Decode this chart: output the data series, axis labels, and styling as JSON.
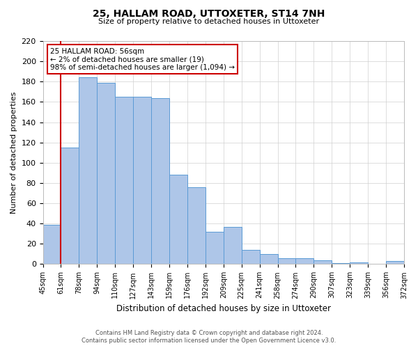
{
  "title": "25, HALLAM ROAD, UTTOXETER, ST14 7NH",
  "subtitle": "Size of property relative to detached houses in Uttoxeter",
  "xlabel": "Distribution of detached houses by size in Uttoxeter",
  "ylabel": "Number of detached properties",
  "bar_labels": [
    "45sqm",
    "61sqm",
    "78sqm",
    "94sqm",
    "110sqm",
    "127sqm",
    "143sqm",
    "159sqm",
    "176sqm",
    "192sqm",
    "209sqm",
    "225sqm",
    "241sqm",
    "258sqm",
    "274sqm",
    "290sqm",
    "307sqm",
    "323sqm",
    "339sqm",
    "356sqm",
    "372sqm"
  ],
  "bar_values": [
    39,
    115,
    184,
    179,
    165,
    165,
    164,
    88,
    76,
    32,
    37,
    14,
    10,
    6,
    6,
    4,
    1,
    2,
    0,
    3
  ],
  "bar_color": "#aec6e8",
  "bar_edge_color": "#5b9bd5",
  "background_color": "#ffffff",
  "grid_color": "#d0d0d0",
  "ylim": [
    0,
    220
  ],
  "yticks": [
    0,
    20,
    40,
    60,
    80,
    100,
    120,
    140,
    160,
    180,
    200,
    220
  ],
  "marker_color": "#cc0000",
  "annotation_title": "25 HALLAM ROAD: 56sqm",
  "annotation_line1": "← 2% of detached houses are smaller (19)",
  "annotation_line2": "98% of semi-detached houses are larger (1,094) →",
  "annotation_box_color": "#ffffff",
  "annotation_border_color": "#cc0000",
  "footer_line1": "Contains HM Land Registry data © Crown copyright and database right 2024.",
  "footer_line2": "Contains public sector information licensed under the Open Government Licence v3.0."
}
